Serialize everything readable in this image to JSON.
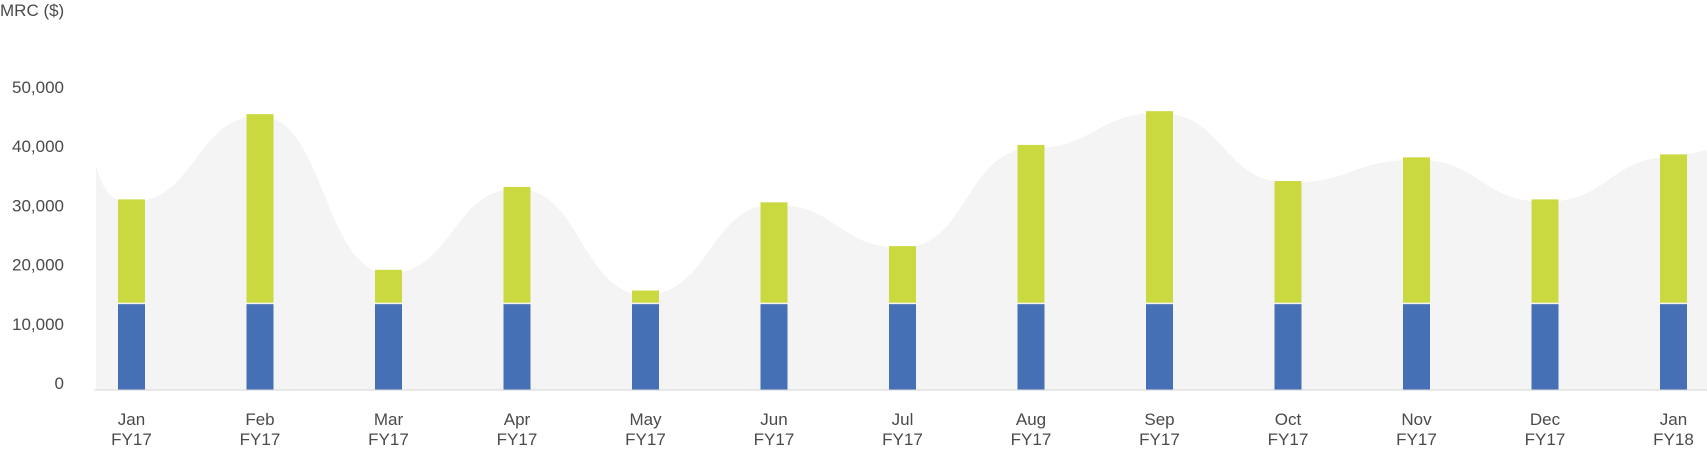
{
  "chart_data": {
    "type": "bar",
    "ylabel": "MRC ($)",
    "ylim": [
      0,
      55000
    ],
    "yticks": [
      "0",
      "10,000",
      "20,000",
      "30,000",
      "40,000",
      "50,000"
    ],
    "ytick_values": [
      0,
      10000,
      20000,
      30000,
      40000,
      50000
    ],
    "categories": [
      {
        "month": "Jan",
        "fy": "FY17"
      },
      {
        "month": "Feb",
        "fy": "FY17"
      },
      {
        "month": "Mar",
        "fy": "FY17"
      },
      {
        "month": "Apr",
        "fy": "FY17"
      },
      {
        "month": "May",
        "fy": "FY17"
      },
      {
        "month": "Jun",
        "fy": "FY17"
      },
      {
        "month": "Jul",
        "fy": "FY17"
      },
      {
        "month": "Aug",
        "fy": "FY17"
      },
      {
        "month": "Sep",
        "fy": "FY17"
      },
      {
        "month": "Oct",
        "fy": "FY17"
      },
      {
        "month": "Nov",
        "fy": "FY17"
      },
      {
        "month": "Dec",
        "fy": "FY17"
      },
      {
        "month": "Jan",
        "fy": "FY18"
      }
    ],
    "series": [
      {
        "color": "#4670b5",
        "values": [
          14500,
          14500,
          14500,
          14500,
          14500,
          14500,
          14500,
          14500,
          14500,
          14500,
          14500,
          14500,
          14500
        ]
      },
      {
        "color": "#cbd940",
        "values": [
          17700,
          32100,
          5800,
          19800,
          2300,
          17200,
          9800,
          26900,
          32600,
          20800,
          24800,
          17700,
          25300
        ]
      }
    ],
    "area": {
      "color": "#f4f4f4",
      "values": [
        31800,
        46300,
        19700,
        34000,
        16100,
        31300,
        24000,
        40800,
        46800,
        35000,
        38900,
        31800,
        39400
      ]
    },
    "grid": false,
    "legend": "none"
  }
}
